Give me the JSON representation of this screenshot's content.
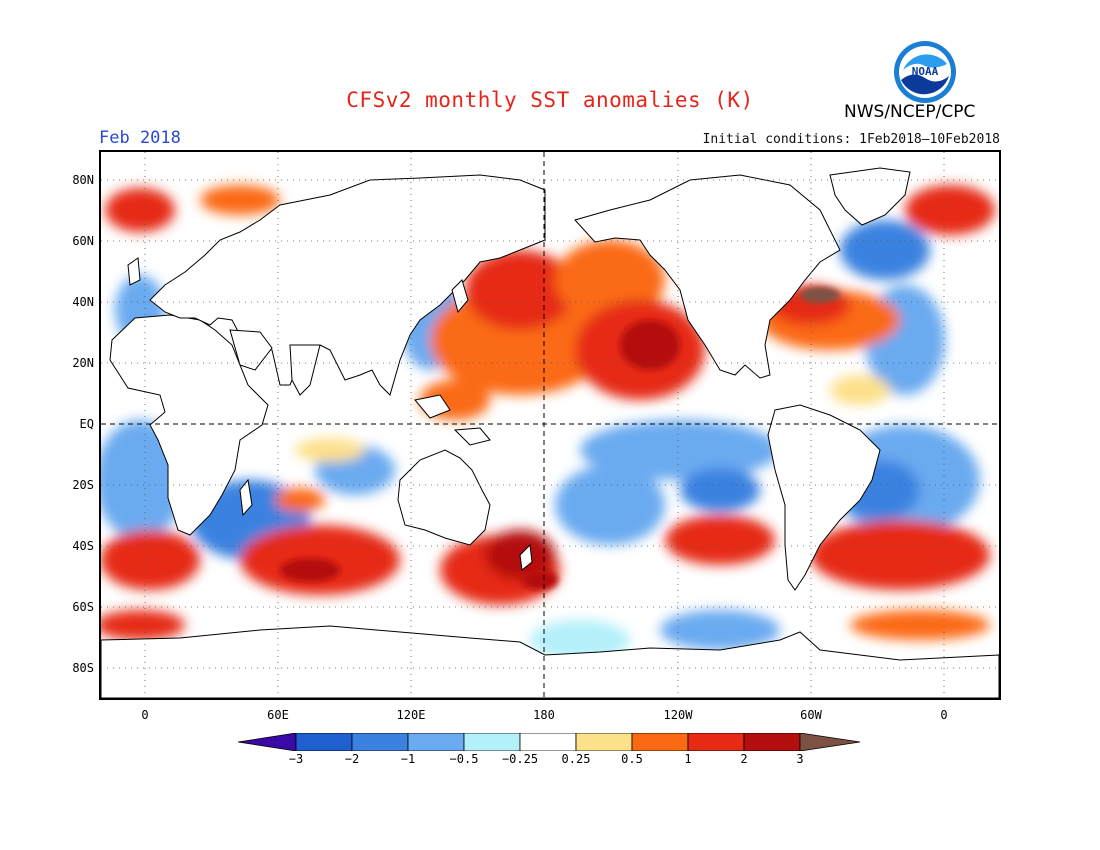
{
  "header": {
    "title": "CFSv2 monthly SST anomalies (K)",
    "month": "Feb 2018",
    "initial_conditions": "Initial conditions: 1Feb2018–10Feb2018",
    "agency": "NWS/NCEP/CPC",
    "logo_text": "NOAA"
  },
  "map": {
    "lat_labels": [
      "80N",
      "60N",
      "40N",
      "20N",
      "EQ",
      "20S",
      "40S",
      "60S",
      "80S"
    ],
    "lon_labels": [
      "0",
      "60E",
      "120E",
      "180",
      "120W",
      "60W",
      "0"
    ],
    "projection": "cylindrical equidistant",
    "grid": "dotted, 20 degree spacing",
    "reference_lines": [
      "equator",
      "dateline"
    ]
  },
  "colorbar": {
    "labels": [
      "−3",
      "−2",
      "−1",
      "−0.5",
      "−0.25",
      "0.25",
      "0.5",
      "1",
      "2",
      "3"
    ],
    "colors": [
      "#3a0aa5",
      "#1f5fd0",
      "#3b82e0",
      "#6aaaf0",
      "#b4f0fa",
      "#ffffff",
      "#fde08a",
      "#fb6a12",
      "#e62a14",
      "#b50e0e",
      "#7d5244"
    ]
  },
  "regions": [
    {
      "name": "north-pacific-warm",
      "level": "1 to 2",
      "color": "#fb6a12"
    },
    {
      "name": "northeast-pacific-warm",
      "level": "2 to 3",
      "color": "#e62a14"
    },
    {
      "name": "equatorial-pacific-cool",
      "level": "-1 to -0.5",
      "color": "#6aaaf0"
    },
    {
      "name": "southern-ocean-warm",
      "level": "1 to 3",
      "color": "#e62a14"
    },
    {
      "name": "north-atlantic-warm",
      "level": "1 to 2",
      "color": "#fb6a12"
    },
    {
      "name": "north-atlantic-subpolar-cool",
      "level": "-1",
      "color": "#3b82e0"
    },
    {
      "name": "south-atlantic-cool",
      "level": "-1 to -0.5",
      "color": "#6aaaf0"
    },
    {
      "name": "indian-ocean-cool",
      "level": "-1",
      "color": "#3b82e0"
    }
  ]
}
